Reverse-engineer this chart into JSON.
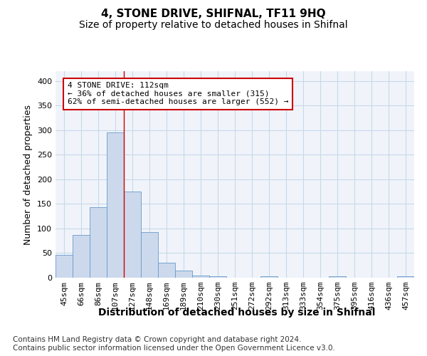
{
  "title": "4, STONE DRIVE, SHIFNAL, TF11 9HQ",
  "subtitle": "Size of property relative to detached houses in Shifnal",
  "xlabel": "Distribution of detached houses by size in Shifnal",
  "ylabel": "Number of detached properties",
  "categories": [
    "45sqm",
    "66sqm",
    "86sqm",
    "107sqm",
    "127sqm",
    "148sqm",
    "169sqm",
    "189sqm",
    "210sqm",
    "230sqm",
    "251sqm",
    "272sqm",
    "292sqm",
    "313sqm",
    "333sqm",
    "354sqm",
    "375sqm",
    "395sqm",
    "416sqm",
    "436sqm",
    "457sqm"
  ],
  "values": [
    47,
    87,
    144,
    295,
    175,
    92,
    30,
    15,
    5,
    3,
    0,
    0,
    3,
    0,
    0,
    0,
    3,
    0,
    0,
    0,
    3
  ],
  "bar_color": "#ccd9ec",
  "bar_edge_color": "#6699cc",
  "property_line_x": 3.5,
  "property_line_color": "#cc0000",
  "annotation_text": "4 STONE DRIVE: 112sqm\n← 36% of detached houses are smaller (315)\n62% of semi-detached houses are larger (552) →",
  "annotation_box_color": "#ffffff",
  "annotation_box_edge": "#cc0000",
  "ylim": [
    0,
    420
  ],
  "yticks": [
    0,
    50,
    100,
    150,
    200,
    250,
    300,
    350,
    400
  ],
  "footer_text": "Contains HM Land Registry data © Crown copyright and database right 2024.\nContains public sector information licensed under the Open Government Licence v3.0.",
  "fig_bg_color": "#ffffff",
  "plot_bg_color": "#f0f4fa",
  "grid_color": "#c8d8e8",
  "title_fontsize": 11,
  "subtitle_fontsize": 10,
  "xlabel_fontsize": 10,
  "ylabel_fontsize": 9,
  "tick_fontsize": 8,
  "annot_fontsize": 8,
  "footer_fontsize": 7.5
}
